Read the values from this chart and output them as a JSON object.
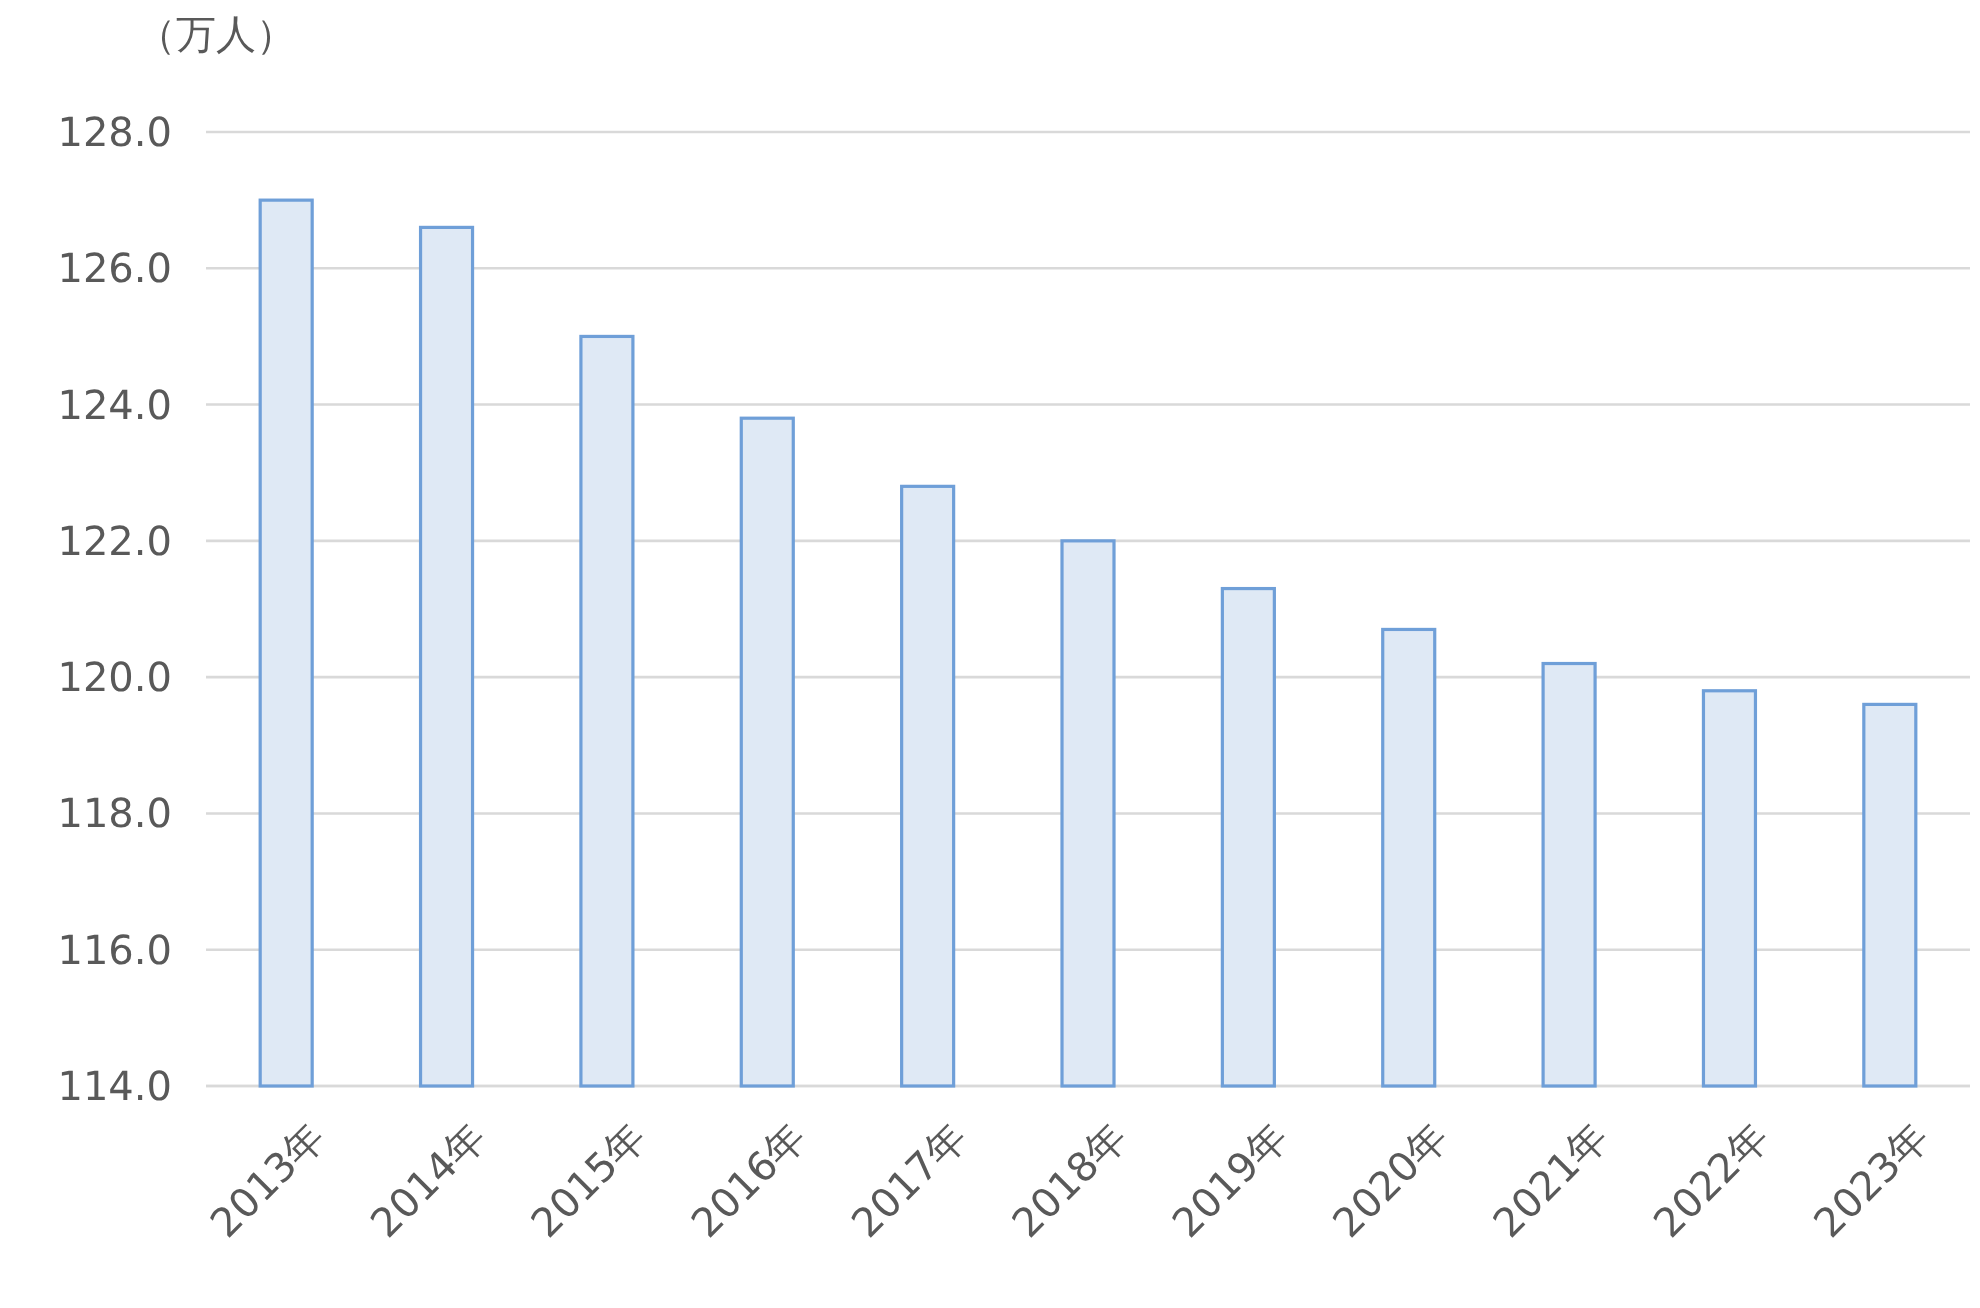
{
  "chart_data": {
    "type": "bar",
    "ylabel": "（万人）",
    "categories": [
      "2013年",
      "2014年",
      "2015年",
      "2016年",
      "2017年",
      "2018年",
      "2019年",
      "2020年",
      "2021年",
      "2022年",
      "2023年"
    ],
    "values": [
      127.0,
      126.6,
      125.0,
      123.8,
      122.8,
      122.0,
      121.3,
      120.7,
      120.2,
      119.8,
      119.6
    ],
    "color": "#dfe9f5",
    "ylim": [
      114,
      128
    ],
    "yticks": [
      {
        "value": 114,
        "label": "114.0"
      },
      {
        "value": 116,
        "label": "116.0"
      },
      {
        "value": 118,
        "label": "118.0"
      },
      {
        "value": 120,
        "label": "120.0"
      },
      {
        "value": 122,
        "label": "122.0"
      },
      {
        "value": 124,
        "label": "124.0"
      },
      {
        "value": 126,
        "label": "126.0"
      },
      {
        "value": 128,
        "label": "128.0"
      }
    ],
    "grid": "y"
  }
}
